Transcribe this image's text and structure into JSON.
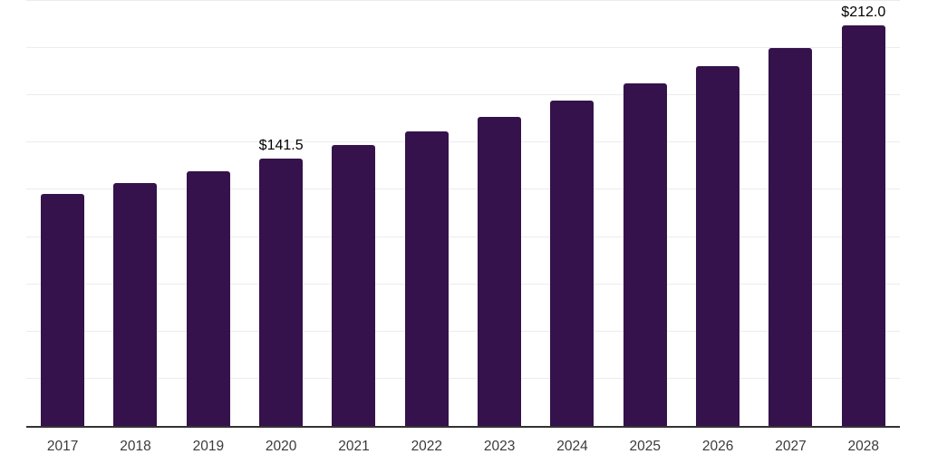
{
  "chart_data": {
    "type": "bar",
    "title": "",
    "categories": [
      "2017",
      "2018",
      "2019",
      "2020",
      "2021",
      "2022",
      "2023",
      "2024",
      "2025",
      "2026",
      "2027",
      "2028"
    ],
    "values": [
      123.0,
      128.7,
      134.8,
      141.5,
      148.8,
      156.0,
      163.5,
      172.0,
      181.2,
      190.4,
      200.2,
      212.0
    ],
    "annotations": [
      {
        "category": "2020",
        "text": "$141.5"
      },
      {
        "category": "2028",
        "text": "$212.0"
      }
    ],
    "xlabel": "",
    "ylabel": "",
    "ylim": [
      0,
      225
    ],
    "gridline_step": 25,
    "y_axis_labels_visible": false,
    "legend": "none",
    "grid": "horizontal",
    "colors": {
      "bar": "#35124B",
      "axis_line": "#333333",
      "gridline": "#ececec",
      "tick_label": "#3b3b3b",
      "annotation_text": "#000000",
      "background": "#ffffff"
    }
  }
}
